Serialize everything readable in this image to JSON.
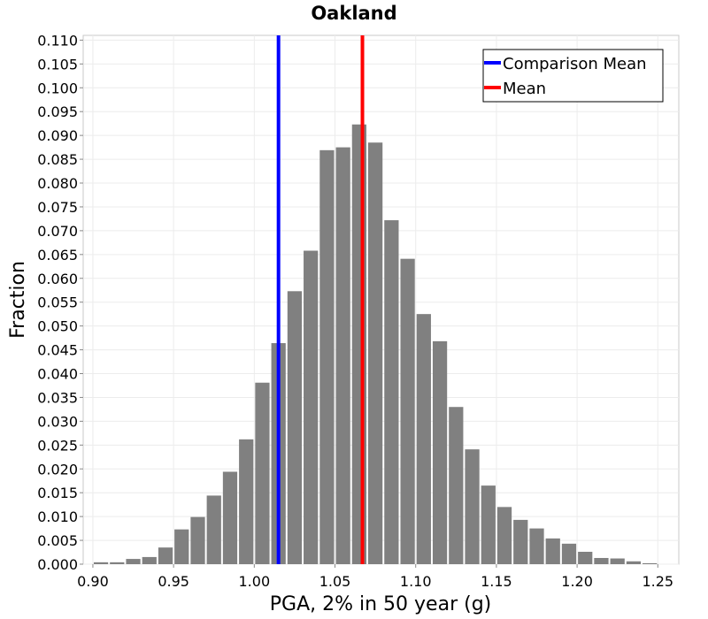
{
  "chart_data": {
    "type": "bar",
    "title": "Oakland",
    "xlabel": "PGA, 2% in 50 year (g)",
    "ylabel": "Fraction",
    "xlim": [
      0.894,
      1.263
    ],
    "ylim": [
      0,
      0.111
    ],
    "xticks": [
      "0.90",
      "0.95",
      "1.00",
      "1.05",
      "1.10",
      "1.15",
      "1.20",
      "1.25"
    ],
    "xtick_values": [
      0.9,
      0.95,
      1.0,
      1.05,
      1.1,
      1.15,
      1.2,
      1.25
    ],
    "yticks": [
      "0.000",
      "0.005",
      "0.010",
      "0.015",
      "0.020",
      "0.025",
      "0.030",
      "0.035",
      "0.040",
      "0.045",
      "0.050",
      "0.055",
      "0.060",
      "0.065",
      "0.070",
      "0.075",
      "0.080",
      "0.085",
      "0.090",
      "0.095",
      "0.100",
      "0.105",
      "0.110"
    ],
    "ytick_values": [
      0.0,
      0.005,
      0.01,
      0.015,
      0.02,
      0.025,
      0.03,
      0.035,
      0.04,
      0.045,
      0.05,
      0.055,
      0.06,
      0.065,
      0.07,
      0.075,
      0.08,
      0.085,
      0.09,
      0.095,
      0.1,
      0.105,
      0.11
    ],
    "grid": true,
    "bar_color": "#808080",
    "bin_width": 0.01,
    "bin_centers": [
      0.905,
      0.915,
      0.925,
      0.935,
      0.945,
      0.955,
      0.965,
      0.975,
      0.985,
      0.995,
      1.005,
      1.015,
      1.025,
      1.035,
      1.045,
      1.055,
      1.065,
      1.075,
      1.085,
      1.095,
      1.105,
      1.115,
      1.125,
      1.135,
      1.145,
      1.155,
      1.165,
      1.175,
      1.185,
      1.195,
      1.205,
      1.215,
      1.225,
      1.235,
      1.245
    ],
    "values": [
      0.0004,
      0.0004,
      0.0011,
      0.0015,
      0.0035,
      0.0073,
      0.0099,
      0.0144,
      0.0194,
      0.0262,
      0.0381,
      0.0464,
      0.0573,
      0.0658,
      0.0869,
      0.0875,
      0.0923,
      0.0885,
      0.0722,
      0.0641,
      0.0525,
      0.0468,
      0.033,
      0.0241,
      0.0165,
      0.012,
      0.0093,
      0.0075,
      0.0054,
      0.0043,
      0.0026,
      0.0013,
      0.0012,
      0.0006,
      0.0002
    ],
    "vlines": [
      {
        "name": "Comparison Mean",
        "x": 1.015,
        "color": "#0000ff"
      },
      {
        "name": "Mean",
        "x": 1.067,
        "color": "#ff0000"
      }
    ],
    "legend": {
      "placement": "top-right",
      "entries": [
        "Comparison Mean",
        "Mean"
      ]
    }
  }
}
